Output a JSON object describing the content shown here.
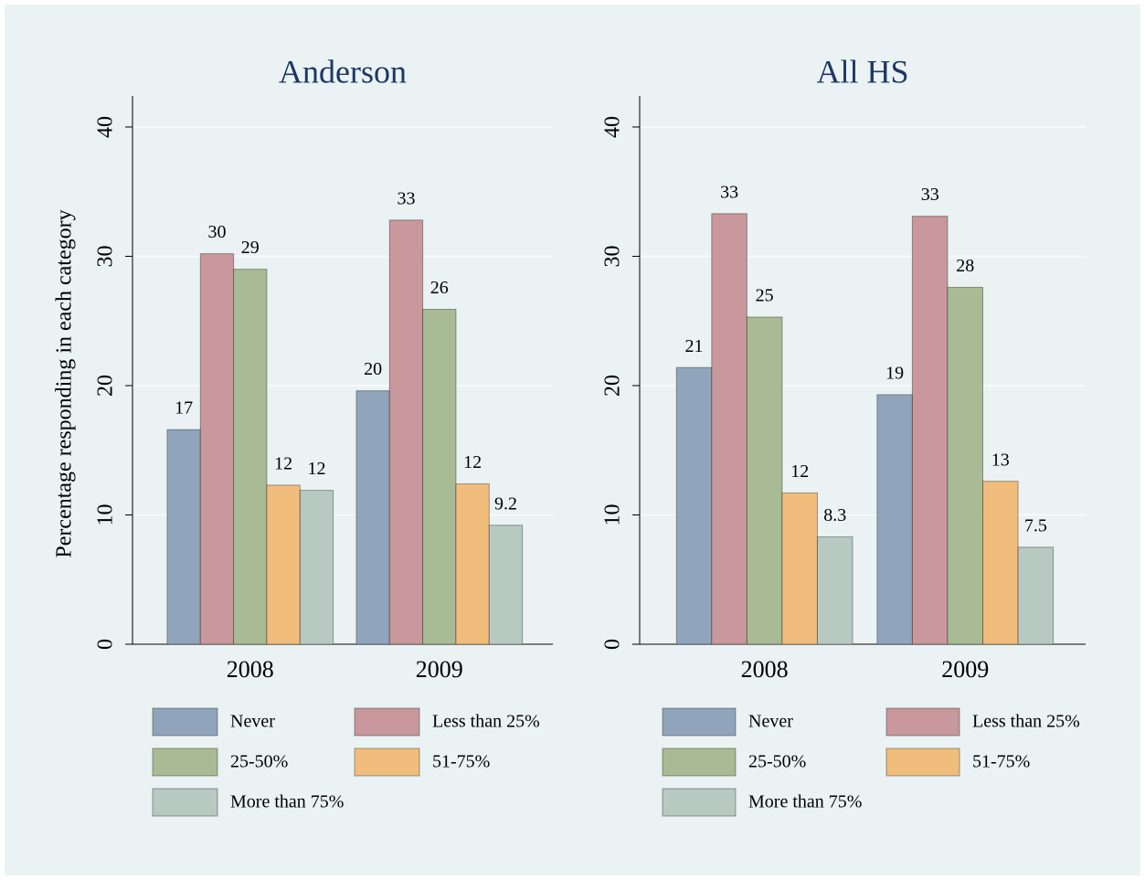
{
  "chart_data": [
    {
      "type": "bar",
      "title": "Anderson",
      "ylabel": "Percentage responding in each category",
      "categories": [
        "2008",
        "2009"
      ],
      "series": [
        {
          "name": "Never",
          "color": "#90a4bc",
          "values": [
            16.6,
            19.6
          ],
          "value_labels": [
            "17",
            "20"
          ]
        },
        {
          "name": "Less than 25%",
          "color": "#c8989c",
          "values": [
            30.2,
            32.8
          ],
          "value_labels": [
            "30",
            "33"
          ]
        },
        {
          "name": "25-50%",
          "color": "#a9bb94",
          "values": [
            29.0,
            25.9
          ],
          "value_labels": [
            "29",
            "26"
          ]
        },
        {
          "name": "51-75%",
          "color": "#f1bd7c",
          "values": [
            12.3,
            12.4
          ],
          "value_labels": [
            "12",
            "12"
          ]
        },
        {
          "name": "More than 75%",
          "color": "#b8c9c2",
          "values": [
            11.9,
            9.2
          ],
          "value_labels": [
            "12",
            "9.2"
          ]
        }
      ],
      "ylim": [
        0,
        42.4
      ],
      "yticks": [
        0,
        10,
        20,
        30,
        40
      ],
      "grid": true,
      "legend": "bottom"
    },
    {
      "type": "bar",
      "title": "All HS",
      "categories": [
        "2008",
        "2009"
      ],
      "series": [
        {
          "name": "Never",
          "color": "#90a4bc",
          "values": [
            21.4,
            19.3
          ],
          "value_labels": [
            "21",
            "19"
          ]
        },
        {
          "name": "Less than 25%",
          "color": "#c8989c",
          "values": [
            33.3,
            33.1
          ],
          "value_labels": [
            "33",
            "33"
          ]
        },
        {
          "name": "25-50%",
          "color": "#a9bb94",
          "values": [
            25.3,
            27.6
          ],
          "value_labels": [
            "25",
            "28"
          ]
        },
        {
          "name": "51-75%",
          "color": "#f1bd7c",
          "values": [
            11.7,
            12.6
          ],
          "value_labels": [
            "12",
            "13"
          ]
        },
        {
          "name": "More than 75%",
          "color": "#b8c9c2",
          "values": [
            8.3,
            7.5
          ],
          "value_labels": [
            "8.3",
            "7.5"
          ]
        }
      ],
      "ylim": [
        0,
        42.4
      ],
      "yticks": [
        0,
        10,
        20,
        30,
        40
      ],
      "grid": true,
      "legend": "bottom"
    }
  ]
}
